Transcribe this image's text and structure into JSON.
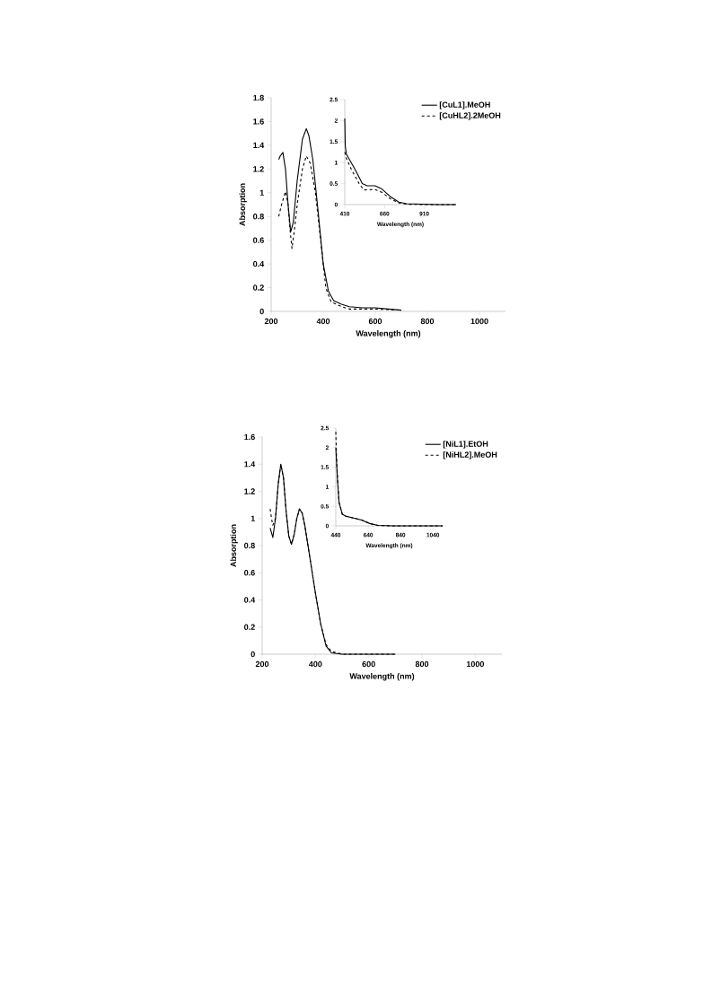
{
  "chart_data": [
    {
      "type": "line",
      "xlabel": "Wavelength (nm)",
      "ylabel": "Absorption",
      "xlim": [
        200,
        1100
      ],
      "ylim": [
        0,
        1.8
      ],
      "xticks": [
        200,
        400,
        600,
        800,
        1000
      ],
      "yticks": [
        0,
        0.2,
        0.4,
        0.6,
        0.8,
        1,
        1.2,
        1.4,
        1.6,
        1.8
      ],
      "legend": "top right",
      "series": [
        {
          "name": "[CuL1].MeOH",
          "color": "#000000",
          "line_style": "solid",
          "x": [
            229,
            235,
            245,
            255,
            265,
            275,
            285,
            300,
            320,
            335,
            345,
            360,
            380,
            400,
            420,
            440,
            470,
            500,
            550,
            600,
            650,
            700
          ],
          "values": [
            1.28,
            1.31,
            1.34,
            1.2,
            0.9,
            0.67,
            0.75,
            1.1,
            1.45,
            1.54,
            1.48,
            1.28,
            0.85,
            0.4,
            0.17,
            0.09,
            0.06,
            0.04,
            0.03,
            0.03,
            0.02,
            0.01
          ]
        },
        {
          "name": "[CuHL2].2MeOH",
          "color": "#000000",
          "line_style": "dashed",
          "x": [
            229,
            240,
            255,
            265,
            272,
            280,
            290,
            300,
            320,
            335,
            350,
            370,
            390,
            410,
            430,
            470,
            500,
            600,
            700
          ],
          "values": [
            0.8,
            0.9,
            1.01,
            0.9,
            0.7,
            0.53,
            0.7,
            0.9,
            1.2,
            1.31,
            1.25,
            1.0,
            0.6,
            0.2,
            0.08,
            0.04,
            0.02,
            0.02,
            0.01
          ]
        }
      ]
    },
    {
      "type": "line",
      "xlabel": "Wavelength (nm)",
      "xlim": [
        410,
        1110
      ],
      "ylim": [
        0,
        2.5
      ],
      "xticks": [
        410,
        660,
        910
      ],
      "yticks": [
        0,
        0.5,
        1,
        1.5,
        2,
        2.5
      ],
      "series": [
        {
          "color": "#000000",
          "line_style": "solid",
          "x": [
            410,
            413,
            420,
            450,
            480,
            520,
            550,
            600,
            640,
            700,
            750,
            800,
            900,
            1000,
            1110
          ],
          "values": [
            2.05,
            1.4,
            1.2,
            1.0,
            0.8,
            0.5,
            0.45,
            0.45,
            0.38,
            0.18,
            0.06,
            0.02,
            0.01,
            0,
            0
          ]
        },
        {
          "color": "#000000",
          "line_style": "dashed",
          "x": [
            410,
            420,
            450,
            500,
            530,
            600,
            640,
            700,
            750,
            800,
            900,
            1110
          ],
          "values": [
            1.25,
            1.1,
            0.85,
            0.5,
            0.35,
            0.36,
            0.3,
            0.13,
            0.04,
            0.01,
            0,
            0
          ]
        }
      ]
    },
    {
      "type": "line",
      "xlabel": "Wavelength (nm)",
      "ylabel": "Absorption",
      "xlim": [
        200,
        1100
      ],
      "ylim": [
        0,
        1.6
      ],
      "xticks": [
        200,
        400,
        600,
        800,
        1000
      ],
      "yticks": [
        0,
        0.2,
        0.4,
        0.6,
        0.8,
        1,
        1.2,
        1.4,
        1.6
      ],
      "legend": "top right",
      "series": [
        {
          "name": "[NiL1].EtOH",
          "color": "#000000",
          "line_style": "solid",
          "x": [
            230,
            240,
            250,
            260,
            270,
            280,
            290,
            300,
            310,
            320,
            330,
            340,
            350,
            360,
            380,
            400,
            420,
            440,
            460,
            500,
            600,
            700
          ],
          "values": [
            0.93,
            0.86,
            1.0,
            1.25,
            1.4,
            1.3,
            1.05,
            0.87,
            0.81,
            0.88,
            1.0,
            1.07,
            1.04,
            0.95,
            0.7,
            0.45,
            0.22,
            0.06,
            0.01,
            0,
            0,
            0
          ]
        },
        {
          "name": "[NiHL2].MeOH",
          "color": "#000000",
          "line_style": "dashed",
          "x": [
            230,
            235,
            240,
            250,
            260,
            270,
            280,
            290,
            300,
            310,
            320,
            330,
            340,
            350,
            360,
            380,
            400,
            420,
            440,
            460,
            500,
            600,
            700
          ],
          "values": [
            1.07,
            1.0,
            0.95,
            1.0,
            1.25,
            1.4,
            1.3,
            1.05,
            0.87,
            0.81,
            0.88,
            1.0,
            1.07,
            1.04,
            0.95,
            0.7,
            0.45,
            0.22,
            0.07,
            0.02,
            0,
            0,
            0
          ]
        }
      ]
    },
    {
      "type": "line",
      "xlabel": "Wavelength (nm)",
      "xlim": [
        440,
        1100
      ],
      "ylim": [
        0,
        2.5
      ],
      "xticks": [
        440,
        640,
        840,
        1040
      ],
      "yticks": [
        0,
        0.5,
        1,
        1.5,
        2,
        2.5
      ],
      "series": [
        {
          "color": "#000000",
          "line_style": "solid",
          "x": [
            440,
            445,
            450,
            460,
            480,
            500,
            550,
            600,
            650,
            700,
            800,
            1100
          ],
          "values": [
            2.0,
            1.6,
            1.2,
            0.6,
            0.3,
            0.25,
            0.2,
            0.15,
            0.06,
            0.01,
            0,
            0
          ]
        },
        {
          "color": "#000000",
          "line_style": "dashed",
          "x": [
            440,
            445,
            450,
            460,
            480,
            500,
            550,
            600,
            650,
            700,
            800,
            1100
          ],
          "values": [
            2.4,
            1.7,
            1.3,
            0.6,
            0.3,
            0.25,
            0.2,
            0.15,
            0.06,
            0.01,
            0,
            0
          ]
        }
      ]
    }
  ]
}
